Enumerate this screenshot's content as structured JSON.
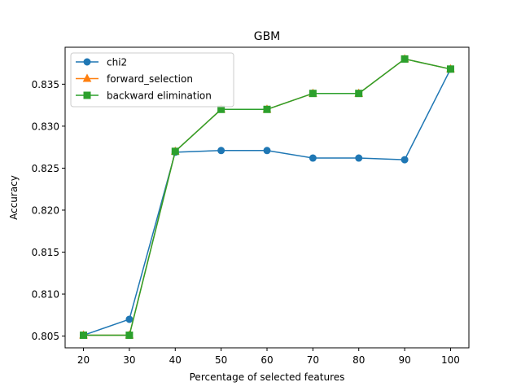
{
  "chart_data": {
    "type": "line",
    "title": "GBM",
    "xlabel": "Percentage of selected features",
    "ylabel": "Accuracy",
    "x": [
      20,
      30,
      40,
      50,
      60,
      70,
      80,
      90,
      100
    ],
    "xticks": [
      "20",
      "30",
      "40",
      "50",
      "60",
      "70",
      "80",
      "90",
      "100"
    ],
    "yticks": [
      "0.805",
      "0.810",
      "0.815",
      "0.820",
      "0.825",
      "0.830",
      "0.835"
    ],
    "ytick_values": [
      0.805,
      0.81,
      0.815,
      0.82,
      0.825,
      0.83,
      0.835
    ],
    "xlim": [
      16,
      104
    ],
    "ylim": [
      0.8036,
      0.8394
    ],
    "grid": false,
    "legend_position": "upper-left",
    "series": [
      {
        "name": "chi2",
        "color": "#1f77b4",
        "marker": "circle",
        "values": [
          0.8051,
          0.807,
          0.8269,
          0.8271,
          0.8271,
          0.8262,
          0.8262,
          0.826,
          0.8368
        ]
      },
      {
        "name": "forward_selection",
        "color": "#ff7f0e",
        "marker": "triangle",
        "values": [
          0.8051,
          0.8051,
          0.827,
          0.832,
          0.832,
          0.8339,
          0.8339,
          0.838,
          0.8368
        ]
      },
      {
        "name": "backward elimination",
        "color": "#2ca02c",
        "marker": "square",
        "values": [
          0.8051,
          0.8051,
          0.827,
          0.832,
          0.832,
          0.8339,
          0.8339,
          0.838,
          0.8368
        ]
      }
    ]
  }
}
